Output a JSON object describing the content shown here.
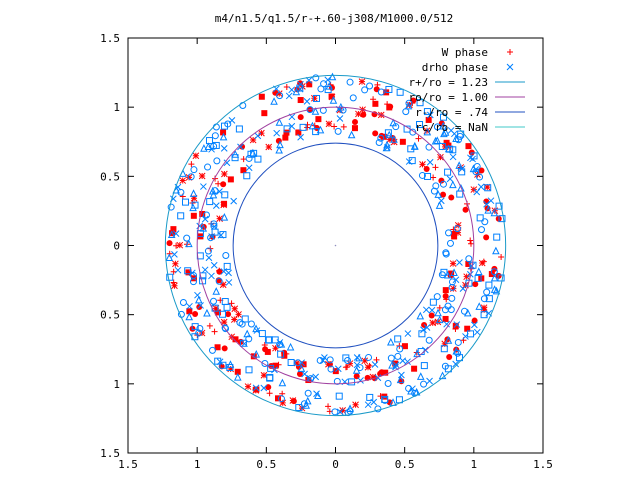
{
  "chart_data": {
    "type": "scatter",
    "title": "m4/n1.5/q1.5/r-+.60-j308/M1000.0/512",
    "xlim": [
      -1.5,
      1.5
    ],
    "ylim": [
      -1.5,
      1.5
    ],
    "x_ticks": [
      -1.5,
      -1,
      -0.5,
      0,
      0.5,
      1,
      1.5
    ],
    "x_tick_labels": [
      "1.5",
      "1",
      "0.5",
      "0",
      "0.5",
      "1",
      "1.5"
    ],
    "y_ticks": [
      1.5,
      1,
      0.5,
      0,
      -0.5,
      -1,
      -1.5
    ],
    "y_tick_labels": [
      "1.5",
      "1",
      "0.5",
      "0",
      "0.5",
      "1",
      "1.5"
    ],
    "grid": false,
    "legend_position": "top-right",
    "series": [
      {
        "name": "W phase",
        "marker": "+",
        "color": "#ff0000"
      },
      {
        "name": "drho phase",
        "marker": "x",
        "color": "#0080ff"
      },
      {
        "name": "r+/ro = 1.23",
        "style": "circle",
        "radius": 1.23,
        "color": "#1a9ac8"
      },
      {
        "name": "ro/ro = 1.00",
        "style": "circle",
        "radius": 1.0,
        "color": "#a040a0"
      },
      {
        "name": "r-/ro = .74",
        "style": "circle",
        "radius": 0.74,
        "color": "#2050c0"
      },
      {
        "name": "rc/ro = NaN",
        "style": "circle",
        "radius": null,
        "color": "#40c8c8"
      }
    ],
    "point_bands": [
      {
        "series": "W phase",
        "r_min": 0.86,
        "r_max": 1.2,
        "count": 260
      },
      {
        "series": "drho phase",
        "r_min": 0.78,
        "r_max": 1.22,
        "count": 420
      }
    ],
    "legend_text": [
      "W phase",
      "drho phase",
      "r+/ro = 1.23",
      "ro/ro = 1.00",
      "r-/ro = .74",
      "rc/ro = NaN"
    ]
  }
}
